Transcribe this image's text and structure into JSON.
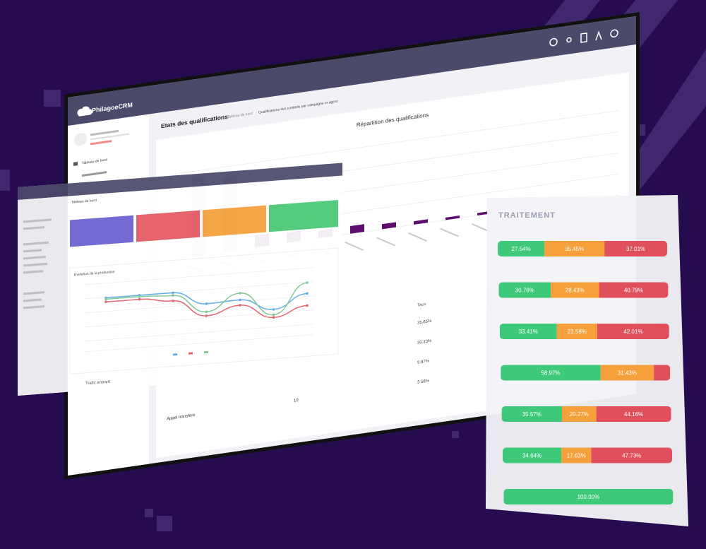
{
  "main": {
    "logo": "PhilagoeCRM",
    "menu": "Tableau de bord",
    "page_title": "Etats des qualifications",
    "breadcrumb": [
      "Tableau de bord",
      "Qualifications des contacts par campagne et agent"
    ],
    "chart_title": "Répartition des qualifications",
    "bars": [
      92,
      88,
      14,
      12,
      9,
      9,
      6,
      4,
      3,
      3
    ],
    "table": {
      "header": "Taux",
      "rates": [
        "35.65%",
        "30.33%",
        "9.87%",
        "3.58%"
      ],
      "row_label": "Appel transfere",
      "row_value": "10"
    }
  },
  "dashboard": {
    "title": "Tableau de bord",
    "chart_title": "Evolution de la production",
    "footer": "Trafic entrant",
    "series": [
      {
        "color": "#5aa9e6",
        "values": [
          78,
          78,
          78,
          58,
          60,
          42,
          62
        ]
      },
      {
        "color": "#e35d6a",
        "values": [
          72,
          72,
          66,
          40,
          52,
          30,
          44
        ]
      },
      {
        "color": "#7cc58f",
        "values": [
          76,
          76,
          74,
          46,
          70,
          34,
          78
        ]
      }
    ]
  },
  "traitement": {
    "title": "TRAITEMENT",
    "colors": [
      "#3ec97a",
      "#f5a03a",
      "#e0505c"
    ],
    "rows": [
      {
        "values": [
          27.54,
          35.45,
          37.01
        ],
        "value_labels": [
          "27.54%",
          "35.45%",
          "37.01%"
        ]
      },
      {
        "values": [
          30.76,
          28.43,
          40.79
        ],
        "value_labels": [
          "30.76%",
          "28.43%",
          "40.79%"
        ]
      },
      {
        "values": [
          33.41,
          23.58,
          42.01
        ],
        "value_labels": [
          "33.41%",
          "23.58%",
          "42.01%"
        ]
      },
      {
        "values": [
          58.97,
          31.43,
          9.6
        ],
        "value_labels": [
          "58.97%",
          "31.43%",
          null
        ]
      },
      {
        "values": [
          35.57,
          20.27,
          44.16
        ],
        "value_labels": [
          "35.57%",
          "20.27%",
          "44.16%"
        ]
      },
      {
        "values": [
          34.64,
          17.63,
          47.73
        ],
        "value_labels": [
          "34.64%",
          "17.63%",
          "47.73%"
        ]
      },
      {
        "values": [
          100
        ],
        "value_labels": [
          "100.00%"
        ]
      }
    ]
  }
}
